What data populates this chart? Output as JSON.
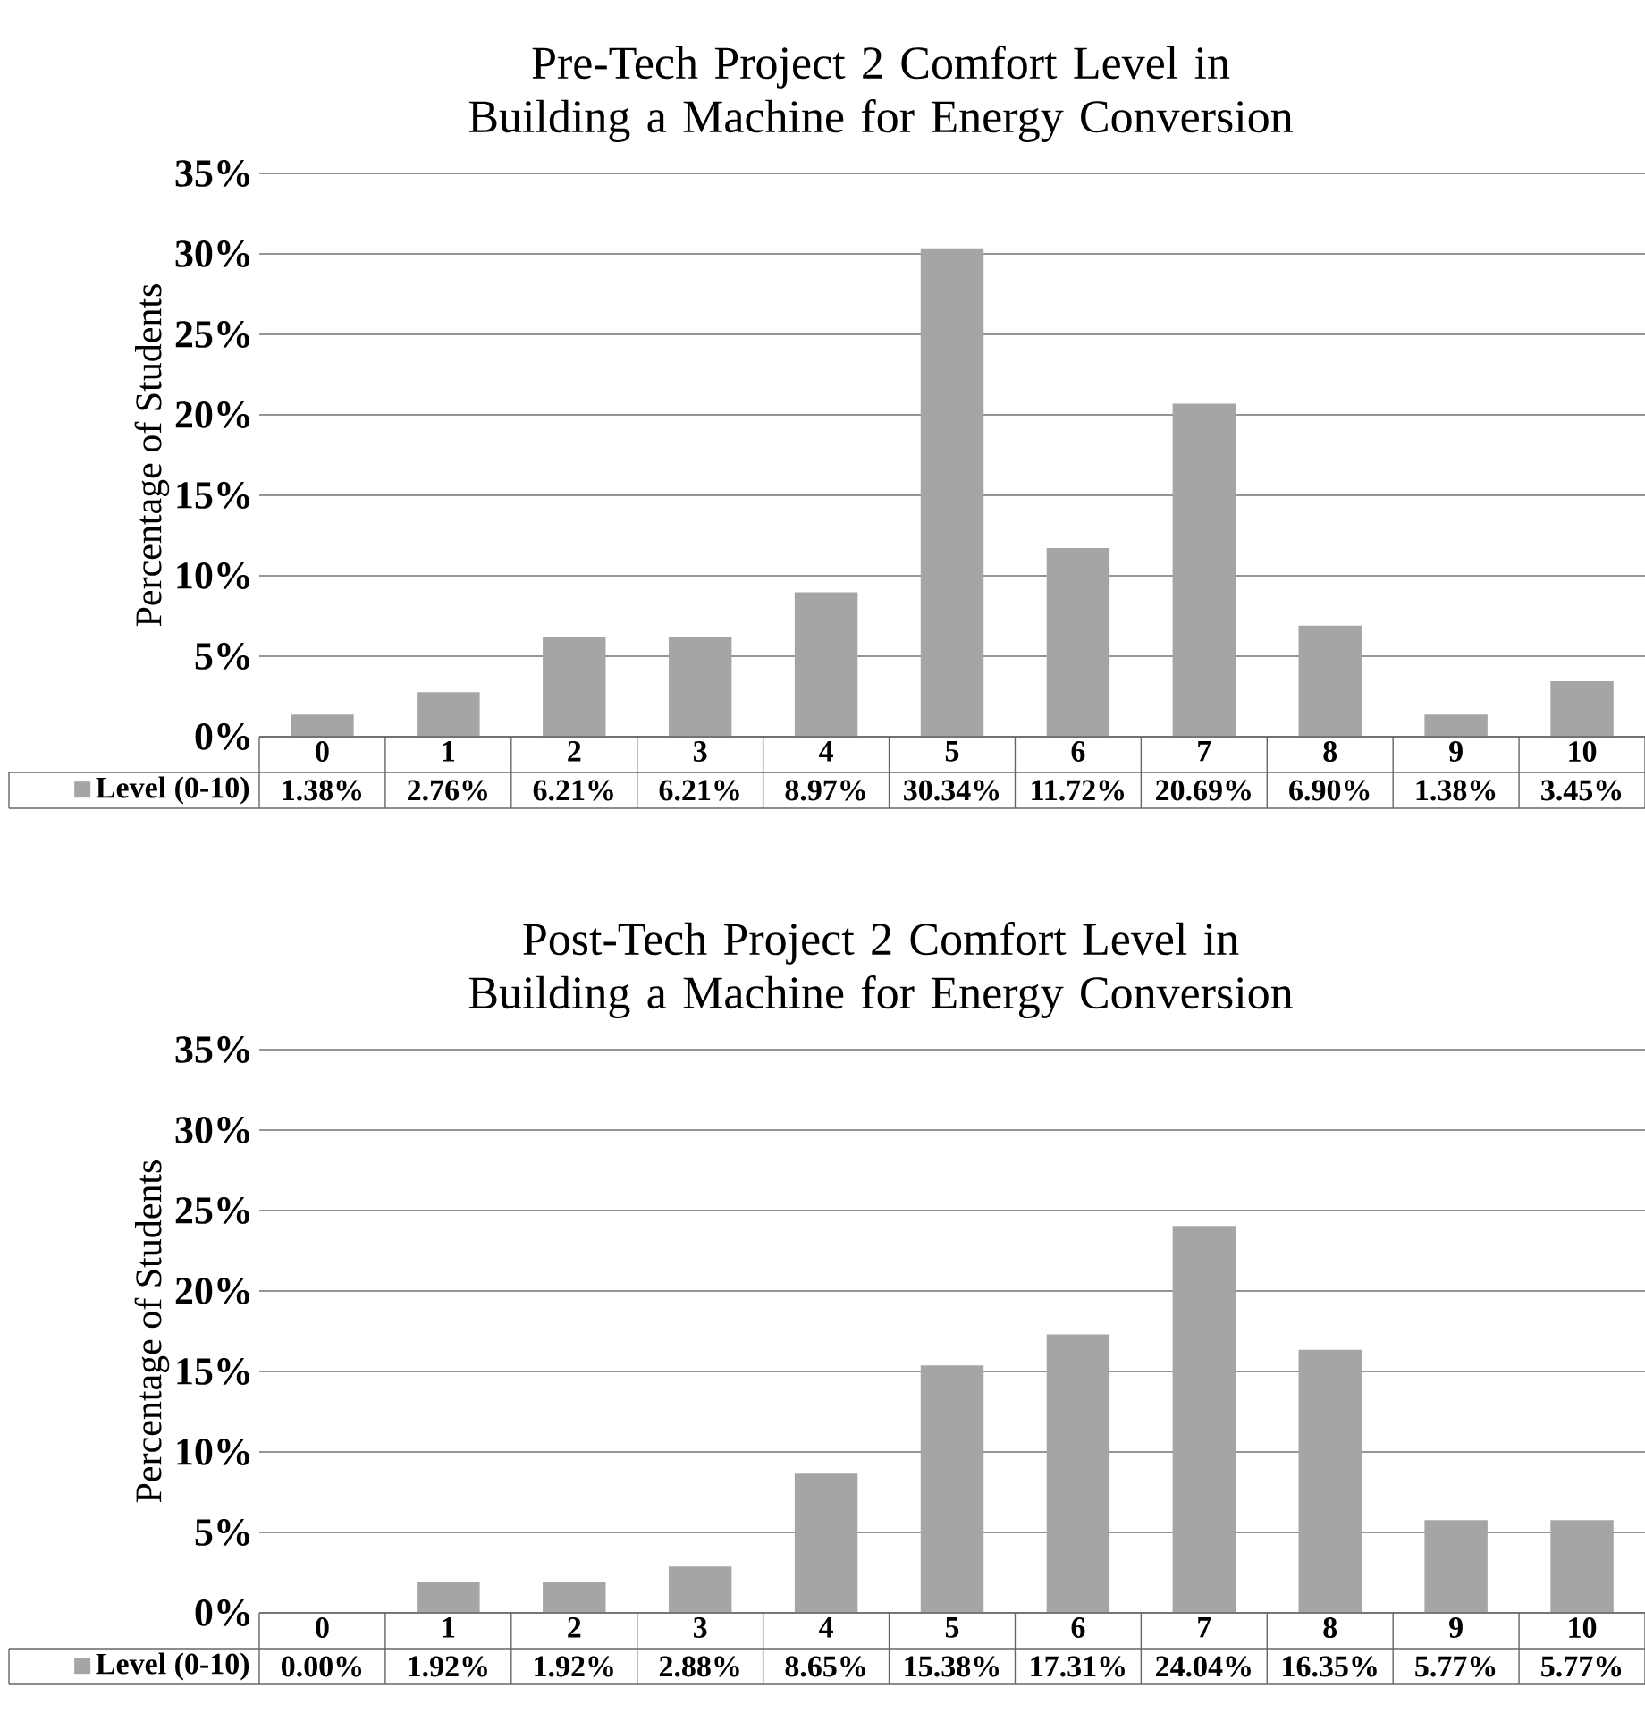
{
  "chart_data": [
    {
      "type": "bar",
      "title": "Pre-Tech Project 2 Comfort Level in Building a Machine for Energy Conversion",
      "ylabel": "Percentage of Students",
      "categories": [
        "0",
        "1",
        "2",
        "3",
        "4",
        "5",
        "6",
        "7",
        "8",
        "9",
        "10"
      ],
      "series": [
        {
          "name": "Level (0-10)",
          "color": "#a5a5a5",
          "values": [
            1.38,
            2.76,
            6.21,
            6.21,
            8.97,
            30.34,
            11.72,
            20.69,
            6.9,
            1.38,
            3.45
          ],
          "value_labels": [
            "1.38%",
            "2.76%",
            "6.21%",
            "6.21%",
            "8.97%",
            "30.34%",
            "11.72%",
            "20.69%",
            "6.90%",
            "1.38%",
            "3.45%"
          ]
        }
      ],
      "ylim": [
        0,
        35
      ],
      "yticks": [
        {
          "value": 0,
          "label": "0%"
        },
        {
          "value": 5,
          "label": "5%"
        },
        {
          "value": 10,
          "label": "10%"
        },
        {
          "value": 15,
          "label": "15%"
        },
        {
          "value": 20,
          "label": "20%"
        },
        {
          "value": 25,
          "label": "25%"
        },
        {
          "value": 30,
          "label": "30%"
        },
        {
          "value": 35,
          "label": "35%"
        }
      ],
      "grid": "y",
      "legend": "bottom"
    },
    {
      "type": "bar",
      "title": "Post-Tech Project 2 Comfort Level in Building a Machine for Energy Conversion",
      "ylabel": "Percentage of Students",
      "categories": [
        "0",
        "1",
        "2",
        "3",
        "4",
        "5",
        "6",
        "7",
        "8",
        "9",
        "10"
      ],
      "series": [
        {
          "name": "Level (0-10)",
          "color": "#a5a5a5",
          "values": [
            0.0,
            1.92,
            1.92,
            2.88,
            8.65,
            15.38,
            17.31,
            24.04,
            16.35,
            5.77,
            5.77
          ],
          "value_labels": [
            "0.00%",
            "1.92%",
            "1.92%",
            "2.88%",
            "8.65%",
            "15.38%",
            "17.31%",
            "24.04%",
            "16.35%",
            "5.77%",
            "5.77%"
          ]
        }
      ],
      "ylim": [
        0,
        35
      ],
      "yticks": [
        {
          "value": 0,
          "label": "0%"
        },
        {
          "value": 5,
          "label": "5%"
        },
        {
          "value": 10,
          "label": "10%"
        },
        {
          "value": 15,
          "label": "15%"
        },
        {
          "value": 20,
          "label": "20%"
        },
        {
          "value": 25,
          "label": "25%"
        },
        {
          "value": 30,
          "label": "30%"
        },
        {
          "value": 35,
          "label": "35%"
        }
      ],
      "grid": "y",
      "legend": "bottom"
    }
  ]
}
